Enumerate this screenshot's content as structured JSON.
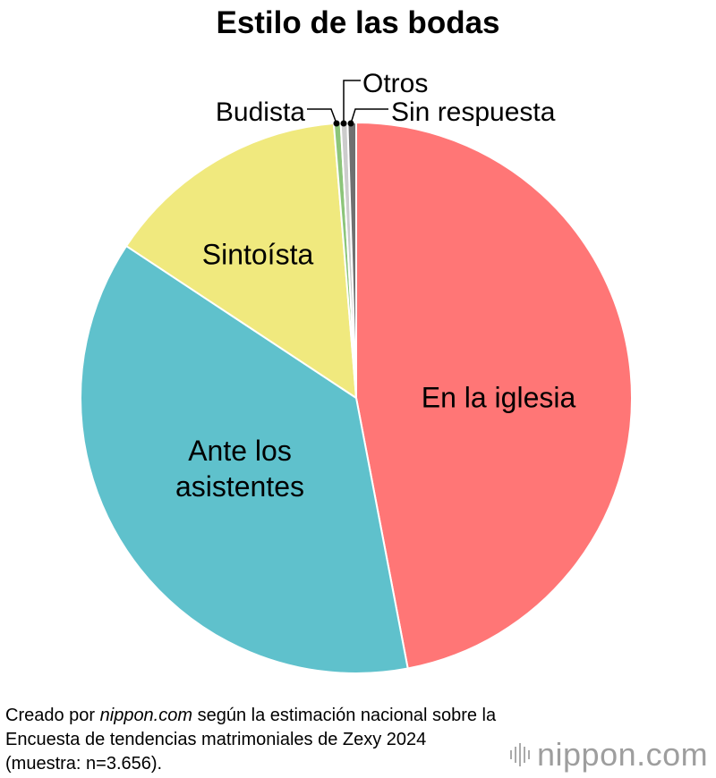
{
  "chart_data": {
    "type": "pie",
    "title": "Estilo de las bodas",
    "slices": [
      {
        "label": "En la iglesia",
        "value": 47.0,
        "color": "#ff7676"
      },
      {
        "label": "Ante los asistentes",
        "value": 37.3,
        "color": "#5fc1cc"
      },
      {
        "label": "Sintoísta",
        "value": 14.4,
        "color": "#f0e97e"
      },
      {
        "label": "Budista",
        "value": 0.4,
        "color": "#8cc57a"
      },
      {
        "label": "Otros",
        "value": 0.4,
        "color": "#cccccc"
      },
      {
        "label": "Sin respuesta",
        "value": 0.5,
        "color": "#707070"
      }
    ]
  },
  "source": {
    "prefix": "Creado por ",
    "site": "nippon.com",
    "suffix": " según la estimación nacional sobre la Encuesta de tendencias matrimoniales de Zexy 2024 (muestra: n=3.656)."
  },
  "logo": {
    "text": "nippon.com"
  }
}
